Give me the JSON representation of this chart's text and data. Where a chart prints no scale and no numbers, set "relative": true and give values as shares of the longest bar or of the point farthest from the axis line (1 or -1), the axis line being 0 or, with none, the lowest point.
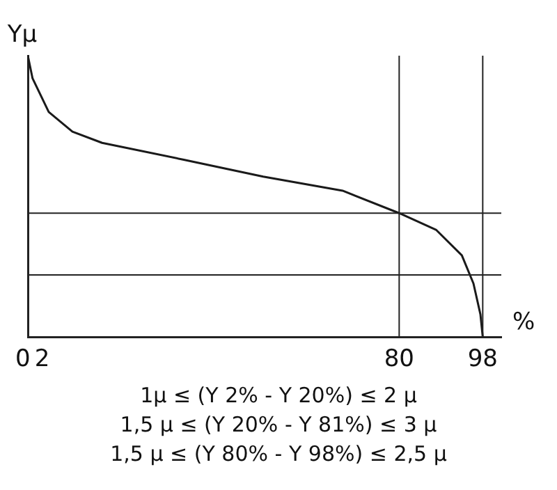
{
  "chart_data": {
    "type": "line",
    "relative": true,
    "xlabel": "%",
    "ylabel": "Yμ",
    "color": "#1a1a1a",
    "x": [
      0,
      1,
      4.5,
      9.6,
      16,
      33.6,
      50.7,
      67.8,
      80,
      88,
      93.5,
      96,
      97.5,
      98
    ],
    "values": [
      1,
      0.92,
      0.8,
      0.73,
      0.69,
      0.63,
      0.57,
      0.52,
      0.44,
      0.38,
      0.29,
      0.19,
      0.08,
      0
    ],
    "xlim": [
      0,
      102
    ],
    "xticks": [
      0,
      2,
      80,
      98
    ],
    "grid": false,
    "marker": "none",
    "line_style": "solid",
    "legend": false,
    "ref_lines": [
      {
        "axis": "y",
        "value": 0.44
      },
      {
        "axis": "y",
        "value": 0.22
      },
      {
        "axis": "x",
        "value": 80
      },
      {
        "axis": "x",
        "value": 98
      }
    ],
    "annotations": [
      "1μ ≤ (Y 2% - Y 20%) ≤ 2 μ",
      "1,5 μ ≤ (Y 20% - Y 81%) ≤ 3 μ",
      "1,5 μ ≤ (Y 80% - Y 98%) ≤ 2,5 μ"
    ]
  }
}
